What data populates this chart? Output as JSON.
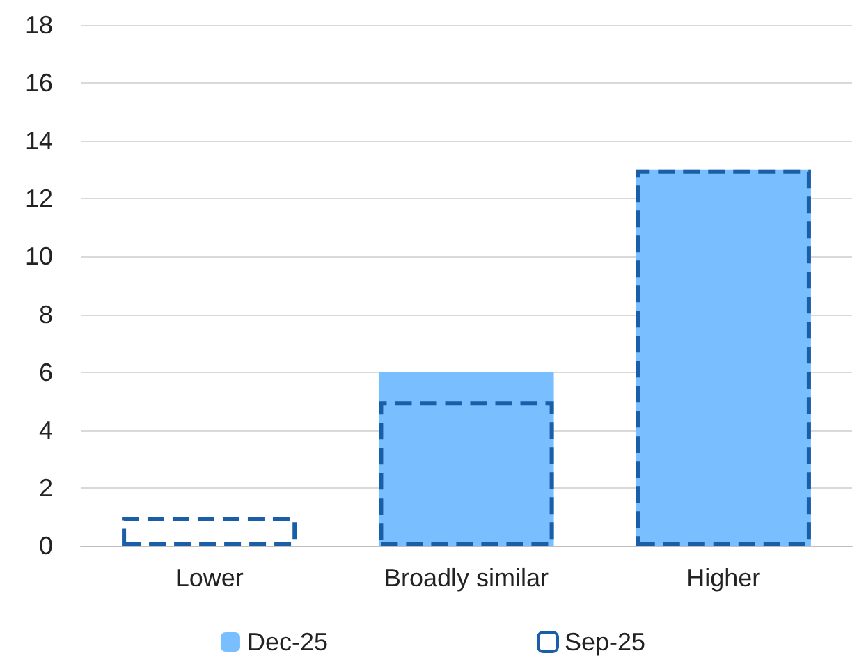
{
  "chart_data": {
    "type": "bar",
    "categories": [
      "Lower",
      "Broadly similar",
      "Higher"
    ],
    "series": [
      {
        "name": "Dec-25",
        "color": "#79bfff",
        "values": [
          0,
          6,
          13
        ]
      },
      {
        "name": "Sep-25",
        "color": "#1a5ea8",
        "values": [
          1,
          5,
          13
        ],
        "line_style": "dashed"
      }
    ],
    "ylim": [
      0,
      18
    ],
    "yticks": [
      0,
      2,
      4,
      6,
      8,
      10,
      12,
      14,
      16,
      18
    ],
    "grid": "y",
    "legend": "bottom"
  }
}
